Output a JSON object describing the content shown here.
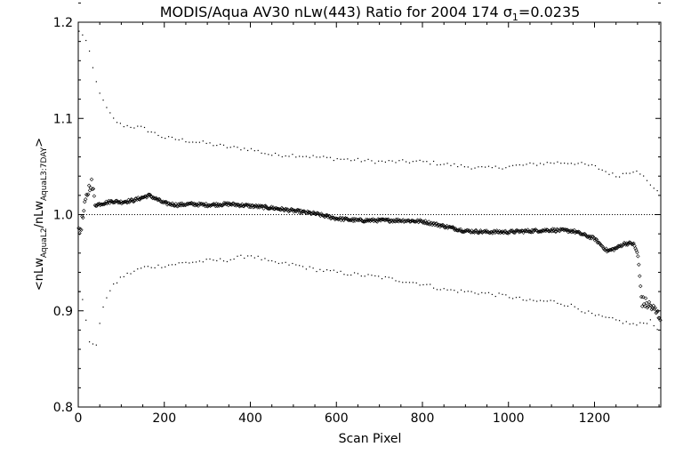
{
  "chart_data": {
    "type": "scatter",
    "title": "MODIS/Aqua AV30 nLw(443) Ratio for 2004 174 σ₁=0.0235",
    "title_parts": {
      "prefix": "MODIS/Aqua AV30 nLw(443) Ratio for 2004 174 σ",
      "sub": "1",
      "suffix": "=0.0235"
    },
    "xlabel": "Scan Pixel",
    "ylabel": "<nLw_AquaL2/nLw_AquaL3:7DAY>",
    "ylabel_parts": {
      "open": "<nLw",
      "sub1": "AquaL2",
      "mid": "/nLw",
      "sub2": "AquaL3:7DAY",
      "close": ">"
    },
    "xlim": [
      0,
      1354
    ],
    "ylim": [
      0.8,
      1.2
    ],
    "x_ticks": [
      0,
      200,
      400,
      600,
      800,
      1000,
      1200
    ],
    "x_tick_labels": [
      "0",
      "200",
      "400",
      "600",
      "800",
      "1000",
      "1200"
    ],
    "y_ticks": [
      0.8,
      0.9,
      1.0,
      1.1,
      1.2
    ],
    "y_tick_labels": [
      "0.8",
      "0.9",
      "1.0",
      "1.1",
      "1.2"
    ],
    "reference_line": 1.0,
    "mean_curve": [
      [
        2,
        0.98
      ],
      [
        10,
        0.995
      ],
      [
        20,
        1.02
      ],
      [
        30,
        1.035
      ],
      [
        40,
        1.01
      ],
      [
        60,
        1.012
      ],
      [
        80,
        1.014
      ],
      [
        100,
        1.013
      ],
      [
        130,
        1.015
      ],
      [
        165,
        1.02
      ],
      [
        200,
        1.012
      ],
      [
        230,
        1.01
      ],
      [
        260,
        1.011
      ],
      [
        300,
        1.01
      ],
      [
        350,
        1.011
      ],
      [
        400,
        1.009
      ],
      [
        450,
        1.007
      ],
      [
        500,
        1.004
      ],
      [
        550,
        1.001
      ],
      [
        600,
        0.996
      ],
      [
        650,
        0.994
      ],
      [
        700,
        0.994
      ],
      [
        750,
        0.994
      ],
      [
        800,
        0.993
      ],
      [
        850,
        0.988
      ],
      [
        900,
        0.983
      ],
      [
        950,
        0.982
      ],
      [
        1000,
        0.982
      ],
      [
        1050,
        0.983
      ],
      [
        1100,
        0.984
      ],
      [
        1150,
        0.983
      ],
      [
        1200,
        0.975
      ],
      [
        1230,
        0.962
      ],
      [
        1250,
        0.965
      ],
      [
        1270,
        0.97
      ],
      [
        1290,
        0.97
      ],
      [
        1300,
        0.96
      ],
      [
        1310,
        0.91
      ],
      [
        1330,
        0.905
      ],
      [
        1350,
        0.895
      ]
    ],
    "upper_curve": [
      [
        5,
        1.19
      ],
      [
        15,
        1.185
      ],
      [
        25,
        1.17
      ],
      [
        40,
        1.14
      ],
      [
        60,
        1.115
      ],
      [
        80,
        1.1
      ],
      [
        100,
        1.093
      ],
      [
        150,
        1.09
      ],
      [
        200,
        1.08
      ],
      [
        250,
        1.077
      ],
      [
        300,
        1.074
      ],
      [
        350,
        1.07
      ],
      [
        400,
        1.068
      ],
      [
        450,
        1.062
      ],
      [
        500,
        1.062
      ],
      [
        550,
        1.06
      ],
      [
        600,
        1.058
      ],
      [
        700,
        1.055
      ],
      [
        800,
        1.055
      ],
      [
        900,
        1.05
      ],
      [
        950,
        1.048
      ],
      [
        1000,
        1.05
      ],
      [
        1050,
        1.052
      ],
      [
        1100,
        1.054
      ],
      [
        1150,
        1.054
      ],
      [
        1200,
        1.05
      ],
      [
        1250,
        1.04
      ],
      [
        1300,
        1.047
      ],
      [
        1330,
        1.03
      ],
      [
        1350,
        1.025
      ]
    ],
    "lower_curve": [
      [
        5,
        0.92
      ],
      [
        15,
        0.9
      ],
      [
        25,
        0.87
      ],
      [
        40,
        0.86
      ],
      [
        60,
        0.91
      ],
      [
        80,
        0.925
      ],
      [
        100,
        0.935
      ],
      [
        150,
        0.945
      ],
      [
        200,
        0.947
      ],
      [
        250,
        0.95
      ],
      [
        300,
        0.952
      ],
      [
        350,
        0.953
      ],
      [
        400,
        0.958
      ],
      [
        450,
        0.95
      ],
      [
        500,
        0.948
      ],
      [
        550,
        0.943
      ],
      [
        600,
        0.94
      ],
      [
        700,
        0.935
      ],
      [
        800,
        0.928
      ],
      [
        850,
        0.922
      ],
      [
        900,
        0.92
      ],
      [
        950,
        0.918
      ],
      [
        1000,
        0.915
      ],
      [
        1050,
        0.91
      ],
      [
        1100,
        0.91
      ],
      [
        1150,
        0.905
      ],
      [
        1200,
        0.895
      ],
      [
        1250,
        0.89
      ],
      [
        1300,
        0.885
      ],
      [
        1330,
        0.89
      ],
      [
        1350,
        0.88
      ]
    ],
    "grid": false,
    "legend": "none",
    "colors": {
      "points": "#000000",
      "background": "#ffffff"
    }
  }
}
